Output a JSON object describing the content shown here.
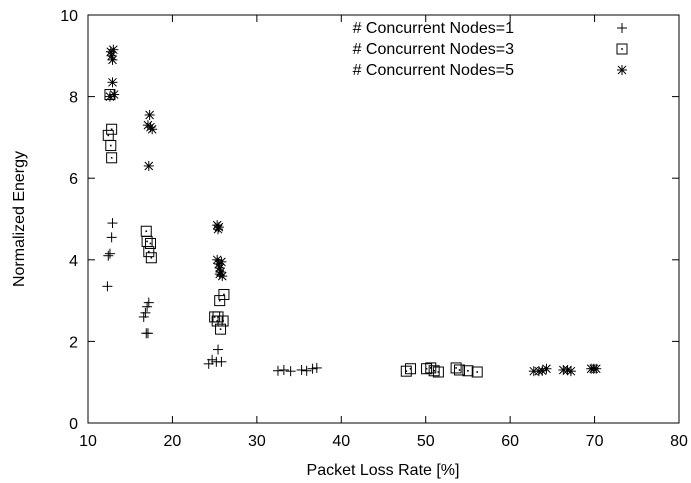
{
  "chart_data": {
    "type": "scatter",
    "title": "",
    "xlabel": "Packet Loss Rate [%]",
    "ylabel": "Normalized Energy",
    "xlim": [
      10,
      80
    ],
    "ylim": [
      0,
      10
    ],
    "xticks": [
      10,
      20,
      30,
      40,
      50,
      60,
      70,
      80
    ],
    "yticks": [
      0,
      2,
      4,
      6,
      8,
      10
    ],
    "grid": false,
    "legend_position": "top-right",
    "series": [
      {
        "name": "# Concurrent Nodes=1",
        "marker": "plus",
        "points": [
          [
            12.3,
            3.35
          ],
          [
            12.4,
            4.1
          ],
          [
            12.6,
            4.15
          ],
          [
            12.8,
            4.55
          ],
          [
            12.9,
            4.9
          ],
          [
            16.6,
            2.6
          ],
          [
            16.8,
            2.7
          ],
          [
            16.9,
            2.2
          ],
          [
            17.1,
            2.2
          ],
          [
            17.0,
            2.85
          ],
          [
            17.2,
            2.95
          ],
          [
            24.3,
            1.45
          ],
          [
            24.7,
            1.55
          ],
          [
            25.2,
            1.5
          ],
          [
            25.4,
            1.8
          ],
          [
            25.8,
            1.5
          ],
          [
            32.5,
            1.28
          ],
          [
            33.2,
            1.3
          ],
          [
            34.0,
            1.27
          ],
          [
            35.3,
            1.3
          ],
          [
            35.9,
            1.28
          ],
          [
            36.6,
            1.33
          ],
          [
            37.1,
            1.35
          ]
        ]
      },
      {
        "name": "# Concurrent Nodes=3",
        "marker": "square-dot",
        "points": [
          [
            12.4,
            7.05
          ],
          [
            12.8,
            7.2
          ],
          [
            12.7,
            6.8
          ],
          [
            12.8,
            6.5
          ],
          [
            12.6,
            8.05
          ],
          [
            16.9,
            4.7
          ],
          [
            17.0,
            4.45
          ],
          [
            17.2,
            4.2
          ],
          [
            17.4,
            4.4
          ],
          [
            17.5,
            4.05
          ],
          [
            25.0,
            2.6
          ],
          [
            25.4,
            2.6
          ],
          [
            25.6,
            3.0
          ],
          [
            25.3,
            2.5
          ],
          [
            25.7,
            2.3
          ],
          [
            26.0,
            2.5
          ],
          [
            26.1,
            3.15
          ],
          [
            47.7,
            1.27
          ],
          [
            48.2,
            1.33
          ],
          [
            50.1,
            1.33
          ],
          [
            50.6,
            1.35
          ],
          [
            51.0,
            1.28
          ],
          [
            51.5,
            1.25
          ],
          [
            53.6,
            1.35
          ],
          [
            54.0,
            1.3
          ],
          [
            55.0,
            1.28
          ],
          [
            56.1,
            1.25
          ]
        ]
      },
      {
        "name": "# Concurrent Nodes=5",
        "marker": "star",
        "points": [
          [
            12.7,
            9.1
          ],
          [
            12.8,
            9.0
          ],
          [
            12.9,
            8.9
          ],
          [
            13.0,
            9.15
          ],
          [
            12.9,
            8.35
          ],
          [
            12.6,
            8.0
          ],
          [
            13.1,
            8.05
          ],
          [
            17.1,
            7.3
          ],
          [
            17.3,
            7.55
          ],
          [
            17.4,
            7.25
          ],
          [
            17.6,
            7.2
          ],
          [
            17.2,
            6.3
          ],
          [
            25.3,
            4.85
          ],
          [
            25.5,
            4.8
          ],
          [
            25.4,
            4.75
          ],
          [
            25.3,
            4.0
          ],
          [
            25.5,
            3.9
          ],
          [
            25.8,
            3.95
          ],
          [
            25.6,
            3.8
          ],
          [
            25.7,
            3.7
          ],
          [
            25.9,
            3.6
          ],
          [
            25.6,
            3.65
          ],
          [
            62.8,
            1.27
          ],
          [
            63.4,
            1.27
          ],
          [
            63.8,
            1.28
          ],
          [
            64.3,
            1.33
          ],
          [
            66.3,
            1.3
          ],
          [
            66.8,
            1.3
          ],
          [
            67.2,
            1.27
          ],
          [
            69.6,
            1.33
          ],
          [
            69.9,
            1.33
          ],
          [
            70.2,
            1.33
          ]
        ]
      }
    ]
  }
}
